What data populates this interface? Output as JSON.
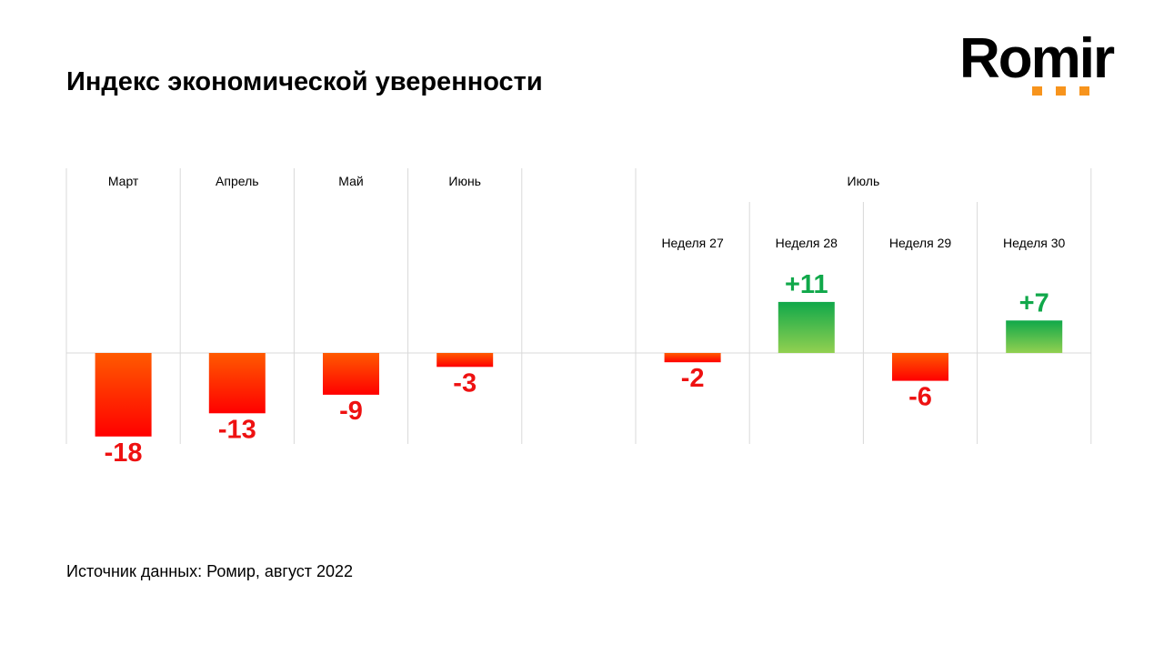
{
  "title": "Индекс экономической уверенности",
  "logo": {
    "text": "Romir"
  },
  "source": "Источник данных:  Ромир, август 2022",
  "chart_data": {
    "type": "bar",
    "title": "Индекс экономической уверенности",
    "group_label": "Июль",
    "categories": [
      "Март",
      "Апрель",
      "Май",
      "Июнь",
      "",
      "Неделя 27",
      "Неделя 28",
      "Неделя 29",
      "Неделя 30"
    ],
    "values": [
      -18,
      -13,
      -9,
      -3,
      null,
      -2,
      11,
      -6,
      7
    ],
    "labels": [
      "-18",
      "-13",
      "-9",
      "-3",
      "",
      "-2",
      "+11",
      "-6",
      "+7"
    ],
    "colors": {
      "negative_top": "#ff5a00",
      "negative_bottom": "#ff0000",
      "positive_top": "#10a84a",
      "positive_bottom": "#92d050",
      "negative_label": "#ee1111",
      "positive_label": "#10a84a"
    }
  }
}
